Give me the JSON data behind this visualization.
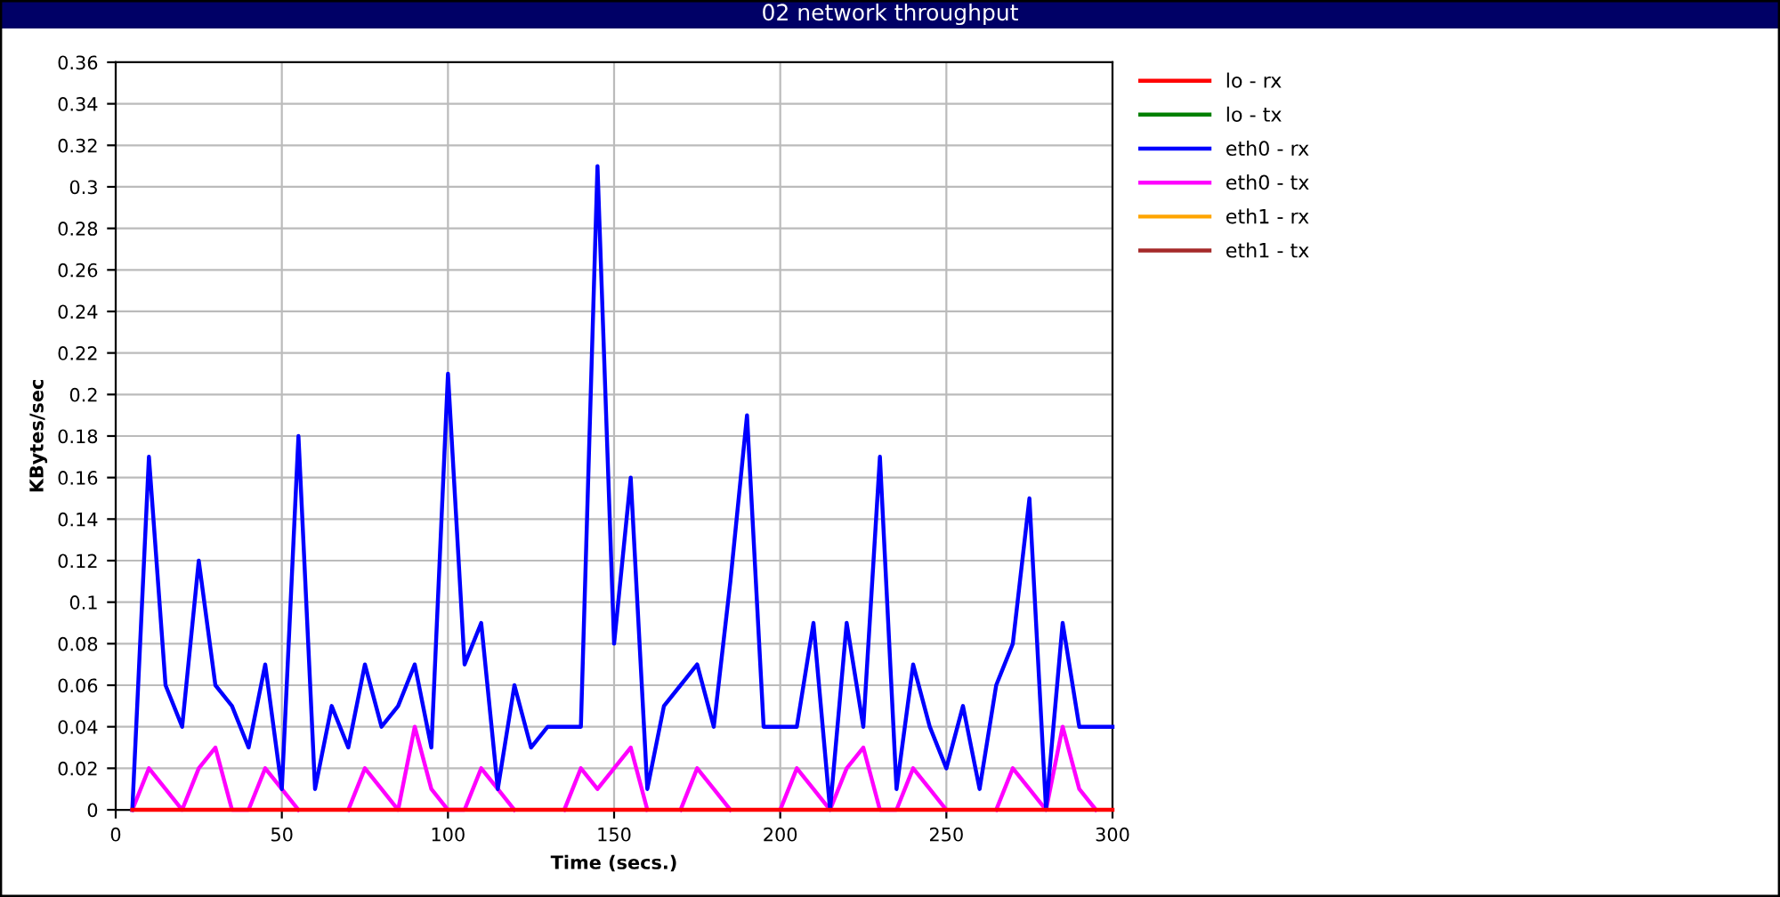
{
  "chart_data": {
    "type": "line",
    "title": "02 network throughput",
    "xlabel": "Time (secs.)",
    "ylabel": "KBytes/sec",
    "x": [
      5,
      10,
      15,
      20,
      25,
      30,
      35,
      40,
      45,
      50,
      55,
      60,
      65,
      70,
      75,
      80,
      85,
      90,
      95,
      100,
      105,
      110,
      115,
      120,
      125,
      130,
      135,
      140,
      145,
      150,
      155,
      160,
      165,
      170,
      175,
      180,
      185,
      190,
      195,
      200,
      205,
      210,
      215,
      220,
      225,
      230,
      235,
      240,
      245,
      250,
      255,
      260,
      265,
      270,
      275,
      280,
      285,
      290,
      295,
      300
    ],
    "series": [
      {
        "name": "lo - rx",
        "color": "#ff0000",
        "values": [
          0,
          0,
          0,
          0,
          0,
          0,
          0,
          0,
          0,
          0,
          0,
          0,
          0,
          0,
          0,
          0,
          0,
          0,
          0,
          0,
          0,
          0,
          0,
          0,
          0,
          0,
          0,
          0,
          0,
          0,
          0,
          0,
          0,
          0,
          0,
          0,
          0,
          0,
          0,
          0,
          0,
          0,
          0,
          0,
          0,
          0,
          0,
          0,
          0,
          0,
          0,
          0,
          0,
          0,
          0,
          0,
          0,
          0,
          0,
          0
        ]
      },
      {
        "name": "lo - tx",
        "color": "#008000",
        "values": [
          null,
          null,
          null,
          null,
          null,
          null,
          null,
          null,
          null,
          null,
          null,
          null,
          null,
          null,
          null,
          null,
          null,
          null,
          null,
          null,
          null,
          null,
          null,
          null,
          null,
          null,
          null,
          null,
          null,
          null,
          null,
          null,
          null,
          null,
          null,
          null,
          null,
          null,
          null,
          null,
          null,
          null,
          null,
          null,
          null,
          null,
          null,
          null,
          null,
          null,
          null,
          null,
          null,
          null,
          null,
          null,
          null,
          null,
          null,
          null
        ]
      },
      {
        "name": "eth0 - rx",
        "color": "#0000ff",
        "values": [
          0,
          0.17,
          0.06,
          0.04,
          0.12,
          0.06,
          0.05,
          0.03,
          0.07,
          0.01,
          0.18,
          0.01,
          0.05,
          0.03,
          0.07,
          0.04,
          0.05,
          0.07,
          0.03,
          0.21,
          0.07,
          0.09,
          0.01,
          0.06,
          0.03,
          0.04,
          0.04,
          0.04,
          0.31,
          0.08,
          0.16,
          0.01,
          0.05,
          0.06,
          0.07,
          0.04,
          0.11,
          0.19,
          0.04,
          0.04,
          0.04,
          0.09,
          0,
          0.09,
          0.04,
          0.17,
          0.01,
          0.07,
          0.04,
          0.02,
          0.05,
          0.01,
          0.06,
          0.08,
          0.15,
          0,
          0.09,
          0.04,
          0.04,
          0.04
        ]
      },
      {
        "name": "eth0 - tx",
        "color": "#ff00ff",
        "values": [
          0,
          0.02,
          0.01,
          0,
          0.02,
          0.03,
          0,
          0,
          0.02,
          0.01,
          0,
          null,
          null,
          0,
          0.02,
          0.01,
          0,
          0.04,
          0.01,
          0,
          0,
          0.02,
          0.01,
          0,
          null,
          null,
          0,
          0.02,
          0.01,
          0.02,
          0.03,
          0,
          null,
          0,
          0.02,
          0.01,
          0,
          null,
          null,
          0,
          0.02,
          0.01,
          0,
          0.02,
          0.03,
          0,
          0,
          0.02,
          0.01,
          0,
          null,
          null,
          0,
          0.02,
          0.01,
          0,
          0.04,
          0.01,
          0,
          null
        ]
      },
      {
        "name": "eth1 - rx",
        "color": "#ffa500",
        "values": [
          null,
          null,
          null,
          null,
          null,
          null,
          null,
          null,
          null,
          null,
          null,
          null,
          null,
          null,
          null,
          null,
          null,
          null,
          null,
          null,
          null,
          null,
          null,
          null,
          null,
          null,
          null,
          null,
          null,
          null,
          null,
          null,
          null,
          null,
          null,
          null,
          null,
          null,
          null,
          null,
          null,
          null,
          null,
          null,
          null,
          null,
          null,
          null,
          null,
          null,
          null,
          null,
          null,
          null,
          null,
          null,
          null,
          null,
          null,
          null
        ]
      },
      {
        "name": "eth1 - tx",
        "color": "#a52a2a",
        "values": [
          null,
          null,
          null,
          null,
          null,
          null,
          null,
          null,
          null,
          null,
          null,
          null,
          null,
          null,
          null,
          null,
          null,
          null,
          null,
          null,
          null,
          null,
          null,
          null,
          null,
          null,
          null,
          null,
          null,
          null,
          null,
          null,
          null,
          null,
          null,
          null,
          null,
          null,
          null,
          null,
          null,
          null,
          null,
          null,
          null,
          null,
          null,
          null,
          null,
          null,
          null,
          null,
          null,
          null,
          null,
          null,
          null,
          null,
          null,
          null
        ]
      }
    ],
    "xlim": [
      0,
      300
    ],
    "xticks": [
      0,
      50,
      100,
      150,
      200,
      250,
      300
    ],
    "ylim": [
      0,
      0.36
    ],
    "yticks": [
      0,
      0.02,
      0.04,
      0.06,
      0.08,
      0.1,
      0.12,
      0.14,
      0.16,
      0.18,
      0.2,
      0.22,
      0.24,
      0.26,
      0.28,
      0.3,
      0.32,
      0.34,
      0.36
    ],
    "grid": true,
    "legend": "top right",
    "marker": "none",
    "line_style": "solid"
  }
}
